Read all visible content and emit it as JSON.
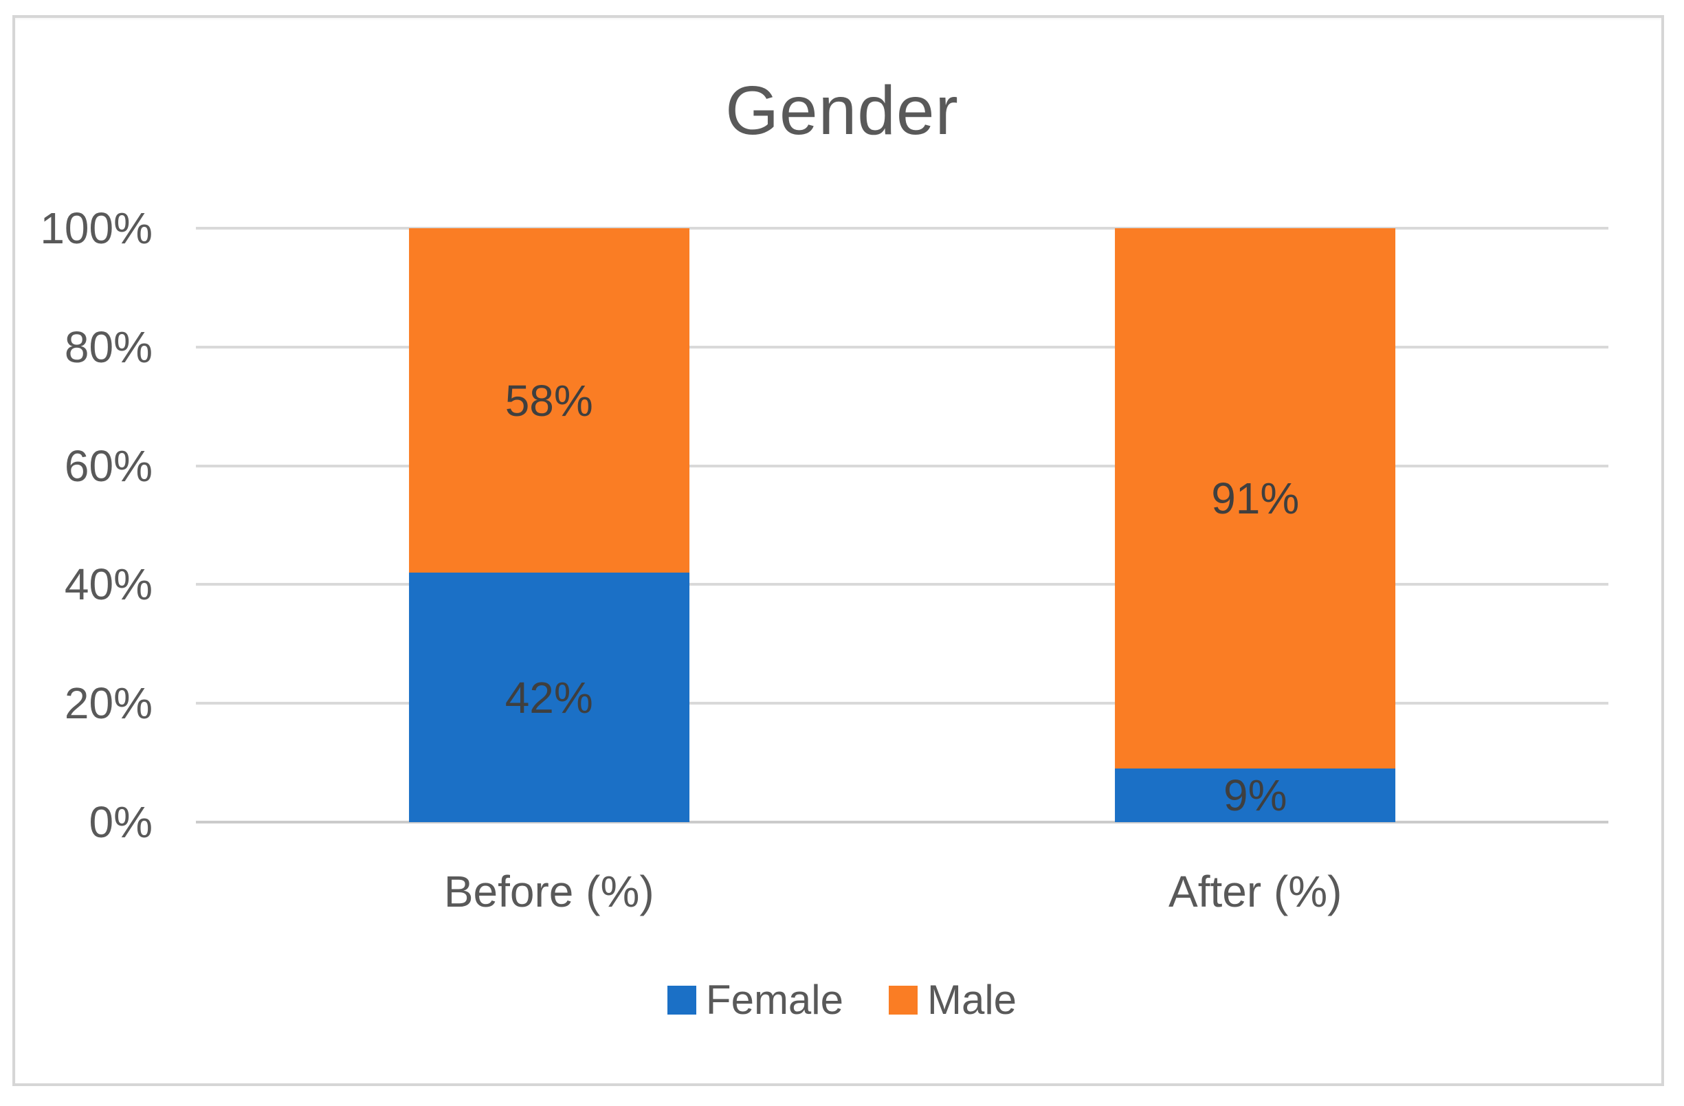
{
  "title": "Gender",
  "chart_data": {
    "type": "bar",
    "subtype": "stacked-100-percent",
    "title": "Gender",
    "categories": [
      "Before (%)",
      "After (%)"
    ],
    "series": [
      {
        "name": "Female",
        "color": "#1B70C6",
        "values": [
          42,
          9
        ],
        "labels": [
          "42%",
          "9%"
        ]
      },
      {
        "name": "Male",
        "color": "#FA7D24",
        "values": [
          58,
          91
        ],
        "labels": [
          "58%",
          "91%"
        ]
      }
    ],
    "y_ticks": [
      "0%",
      "20%",
      "40%",
      "60%",
      "80%",
      "100%"
    ],
    "ylim": [
      0,
      100
    ],
    "grid": true,
    "legend_position": "bottom",
    "colors": {
      "gridline": "#D9D9D9",
      "axis_line": "#CBCBCB",
      "title_text": "#595959",
      "tick_text": "#595959",
      "category_text": "#595959",
      "data_label_text": "#3F3F3F",
      "legend_text": "#595959",
      "frame_border": "#D6D6D6",
      "background": "#FFFFFF"
    }
  }
}
